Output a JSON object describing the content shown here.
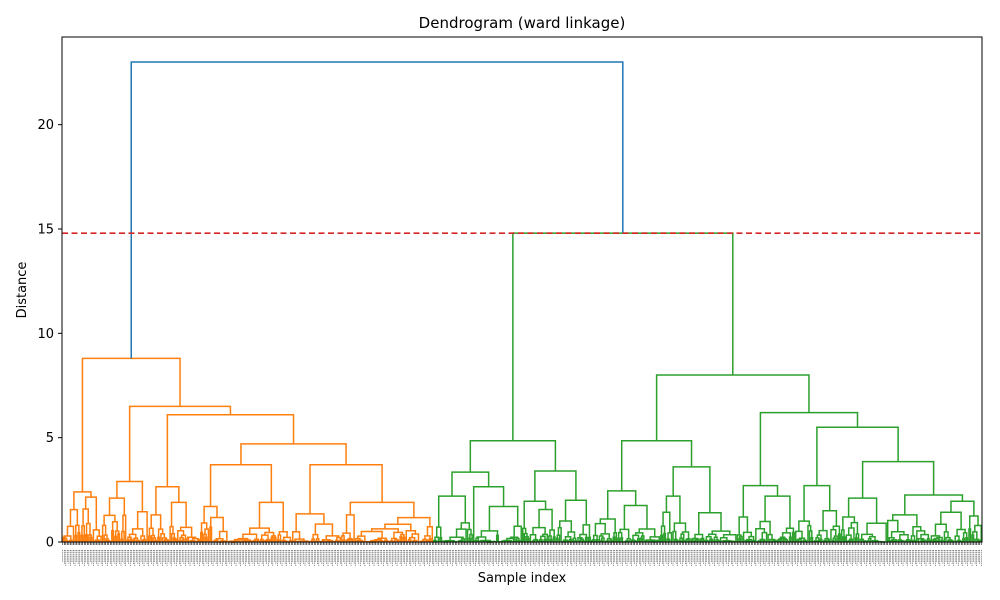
{
  "chart_data": {
    "type": "dendrogram",
    "title": "Dendrogram (ward linkage)",
    "xlabel": "Sample index",
    "ylabel": "Distance",
    "ylim": [
      0,
      24.2
    ],
    "yticks": [
      0,
      5,
      10,
      15,
      20
    ],
    "grid": false,
    "legend": "none",
    "cut_line": {
      "y": 14.8,
      "color": "#d62728",
      "style": "dashed"
    },
    "cluster_colors": [
      "#ff7f0e",
      "#2ca02c"
    ],
    "root_color": "#1f77b4",
    "leaf_count": 600,
    "root_merge": {
      "distance": 23.0
    },
    "cluster_merges": [
      {
        "cluster": "orange",
        "top_merge_distance": 8.8,
        "sub_merges": [
          6.5,
          6.1,
          4.7,
          3.7,
          3.7,
          2.9,
          2.65,
          2.4,
          2.1,
          1.9,
          1.9,
          1.7
        ]
      },
      {
        "cluster": "green",
        "top_merge_distance": 14.8,
        "sub_merges": [
          8.0,
          6.2,
          5.5,
          4.85,
          4.85,
          3.85,
          3.6,
          3.4,
          3.35,
          2.7,
          2.65,
          2.45,
          2.25,
          2.1,
          2.0
        ]
      }
    ]
  }
}
